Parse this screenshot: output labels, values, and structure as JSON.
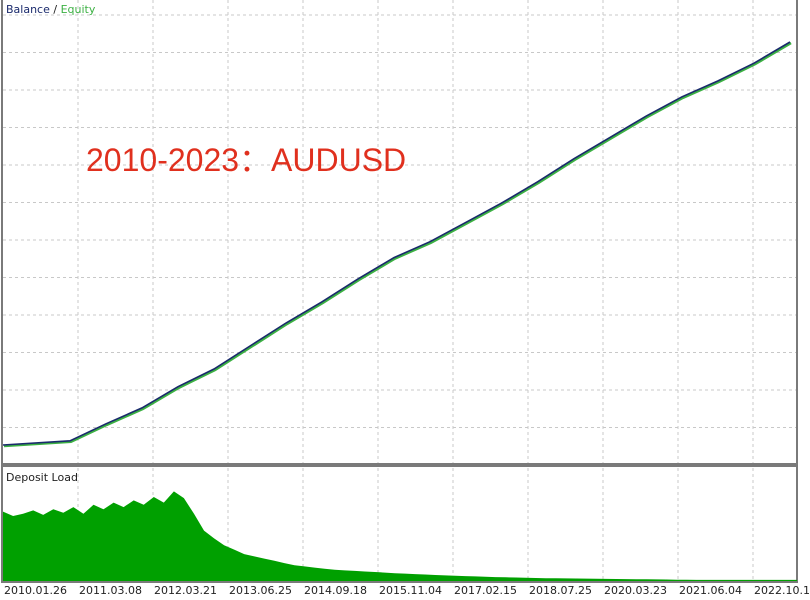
{
  "chart_data": [
    {
      "type": "line",
      "legend": {
        "balance": "Balance",
        "separator": " / ",
        "equity": "Equity",
        "placement": "top-left"
      },
      "annotation": "2010-2023：AUDUSD",
      "grid": true,
      "x_tick_labels": [
        "2010.01.26",
        "2011.03.08",
        "2012.03.21",
        "2013.06.25",
        "2014.09.18",
        "2015.11.04",
        "2017.02.15",
        "2018.07.25",
        "2020.03.23",
        "2021.06.04",
        "2022.10.1"
      ],
      "y_tick_labels": [],
      "series": [
        {
          "name": "Balance",
          "color": "#1a2a6c",
          "x": [
            "2010.01.26",
            "2010.10",
            "2011.03.08",
            "2011.10",
            "2012.03.21",
            "2012.11",
            "2013.06.25",
            "2014.01",
            "2014.09.18",
            "2015.04",
            "2015.11.04",
            "2016.06",
            "2017.02.15",
            "2017.11",
            "2018.07.25",
            "2019.05",
            "2020.03.23",
            "2020.11",
            "2021.06.04",
            "2022.02",
            "2022.10.1",
            "2023.06"
          ],
          "y": [
            0,
            1.2,
            6,
            10.5,
            16.5,
            21.5,
            28,
            34.5,
            40.5,
            47,
            53,
            57.5,
            63,
            68.5,
            74.5,
            81,
            87,
            93,
            98.5,
            103,
            108,
            114
          ]
        },
        {
          "name": "Equity",
          "color": "#3cb043"
        }
      ]
    },
    {
      "type": "area",
      "title": "Deposit Load",
      "color": "#00a000",
      "ylim": [
        0,
        100
      ],
      "x_range": [
        "2010.01.26",
        "2023.06"
      ],
      "peak_fraction_of_range": 0.15,
      "values": [
        62,
        58,
        60,
        63,
        59,
        64,
        61,
        66,
        60,
        68,
        64,
        70,
        66,
        72,
        68,
        75,
        70,
        80,
        74,
        60,
        45,
        38,
        32,
        28,
        24,
        22,
        20,
        18,
        16,
        14,
        13,
        12,
        11,
        10,
        9.5,
        9,
        8.5,
        8,
        7.5,
        7,
        6.6,
        6.2,
        5.8,
        5.4,
        5,
        4.7,
        4.4,
        4.1,
        3.8,
        3.5,
        3.3,
        3.1,
        2.9,
        2.7,
        2.5,
        2.4,
        2.3,
        2.2,
        2.1,
        2,
        1.9,
        1.8,
        1.7,
        1.6,
        1.5,
        1.4,
        1.3,
        1.2,
        1.1,
        1,
        1,
        1,
        1,
        1,
        1,
        1,
        1,
        1,
        1,
        1
      ]
    }
  ],
  "colors": {
    "grid": "#c8c8c8",
    "frame": "#7a7a7a"
  }
}
